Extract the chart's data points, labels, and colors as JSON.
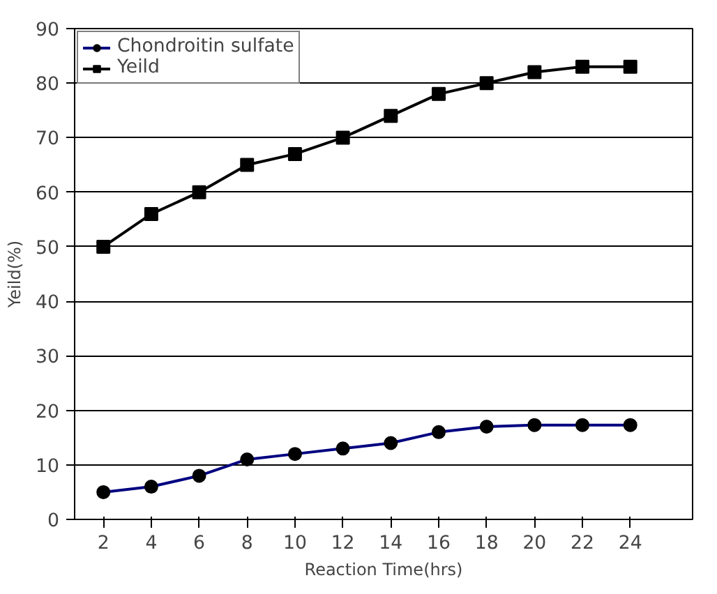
{
  "chart_data": {
    "type": "line",
    "xlabel": "Reaction Time(hrs)",
    "ylabel": "Yeild(%)",
    "x": [
      2,
      4,
      6,
      8,
      10,
      12,
      14,
      16,
      18,
      20,
      22,
      24
    ],
    "series": [
      {
        "name": "Chondroitin sulfate",
        "color": "#000080",
        "marker": "circle",
        "values": [
          5,
          6,
          8,
          11,
          12,
          13,
          14,
          16,
          17,
          17.3,
          17.3,
          17.3
        ]
      },
      {
        "name": "Yeild",
        "color": "#000000",
        "marker": "square",
        "values": [
          50,
          56,
          60,
          65,
          67,
          70,
          74,
          78,
          80,
          82,
          83,
          83
        ]
      }
    ],
    "xlim": [
      0.8,
      26.6
    ],
    "xticks": [
      2,
      4,
      6,
      8,
      10,
      12,
      14,
      16,
      18,
      20,
      22,
      24
    ],
    "ylim": [
      0,
      90
    ],
    "yticks": [
      0,
      10,
      20,
      30,
      40,
      50,
      60,
      70,
      80,
      90
    ],
    "grid": "y",
    "legend": "top left",
    "line_style": "solid"
  }
}
